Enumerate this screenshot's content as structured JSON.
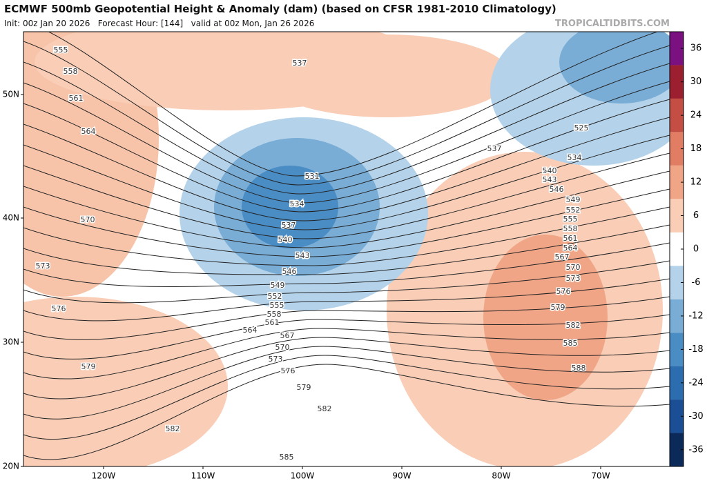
{
  "header": {
    "title": "ECMWF 500mb Geopotential Height & Anomaly (dam) (based on CFSR 1981-2010 Climatology)",
    "subtitle": "Init: 00z Jan 20 2026   Forecast Hour: [144]   valid at 00z Mon, Jan 26 2026",
    "source": "TROPICALTIDBITS.COM"
  },
  "map": {
    "latitude_labels": [
      "50N",
      "40N",
      "30N",
      "20N"
    ],
    "longitude_labels": [
      "120W",
      "110W",
      "100W",
      "90W",
      "80W",
      "70W"
    ],
    "contour_labels": [
      "555",
      "558",
      "561",
      "564",
      "570",
      "573",
      "576",
      "579",
      "582",
      "537",
      "531",
      "534",
      "537",
      "540",
      "543",
      "546",
      "549",
      "552",
      "555",
      "558",
      "561",
      "564",
      "567",
      "570",
      "573",
      "576",
      "579",
      "582",
      "585",
      "525",
      "537",
      "534",
      "540",
      "543",
      "546",
      "549",
      "552",
      "555",
      "558",
      "561",
      "564",
      "567",
      "570",
      "573",
      "576",
      "579",
      "582",
      "585",
      "588"
    ]
  },
  "colorbar": {
    "lim": [
      -39,
      39
    ],
    "ticks": [
      36,
      30,
      24,
      18,
      12,
      6,
      0,
      -6,
      -12,
      -18,
      -24,
      -30,
      -36
    ],
    "colors": [
      "#0b2a5a",
      "#1a4f95",
      "#2c6db0",
      "#4a8cc4",
      "#79add6",
      "#b4d3ea",
      "#ffffff",
      "#f9cdb6",
      "#f0a587",
      "#e07d63",
      "#c44e44",
      "#9b1f2e",
      "#7b1080"
    ]
  }
}
